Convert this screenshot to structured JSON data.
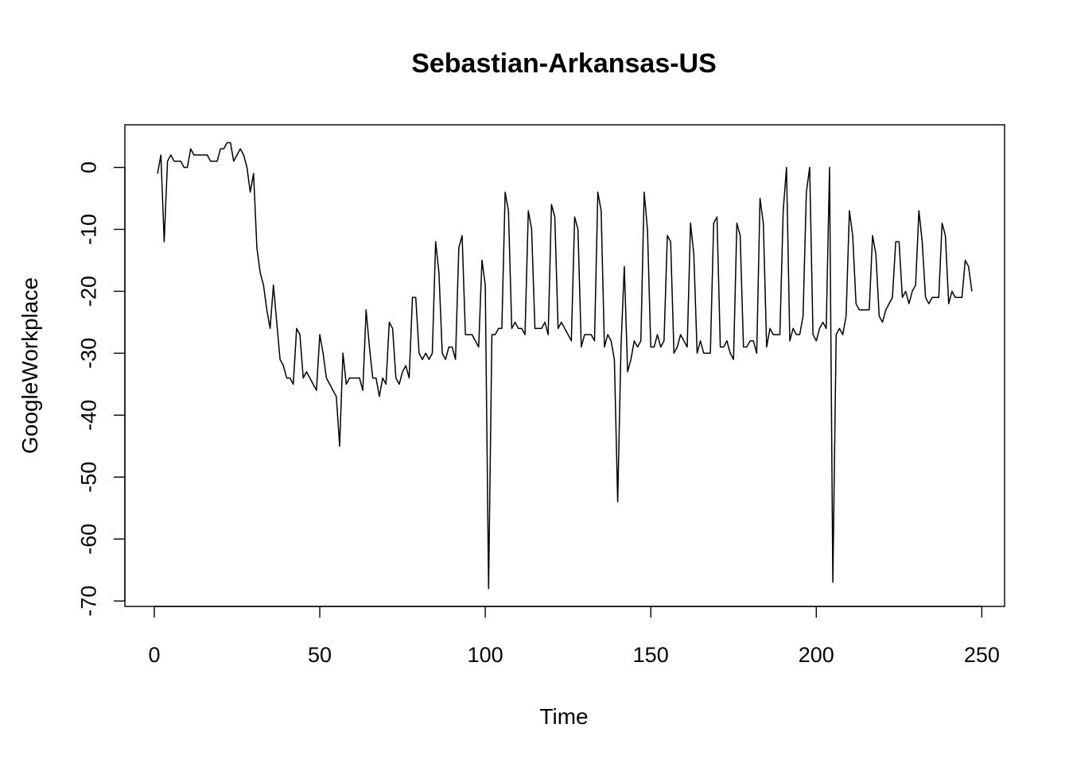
{
  "chart_data": {
    "type": "line",
    "title": "Sebastian-Arkansas-US",
    "xlabel": "Time",
    "ylabel": "GoogleWorkplace",
    "xlim": [
      -8.88,
      256.88
    ],
    "ylim": [
      -70.88,
      6.88
    ],
    "x_ticks": [
      0,
      50,
      100,
      150,
      200,
      250
    ],
    "y_ticks": [
      0,
      -10,
      -20,
      -30,
      -40,
      -50,
      -60,
      -70
    ],
    "x_tick_labels": [
      "0",
      "50",
      "100",
      "150",
      "200",
      "250"
    ],
    "y_tick_labels": [
      "0",
      "-10",
      "-20",
      "-30",
      "-40",
      "-50",
      "-60",
      "-70"
    ],
    "grid": false,
    "legend": "none",
    "series": [
      {
        "color": "#000000",
        "x_start": 1,
        "values": [
          -1,
          2,
          -12,
          1,
          2,
          1,
          1,
          1,
          0,
          0,
          3,
          2,
          2,
          2,
          2,
          2,
          1,
          1,
          1,
          3,
          3,
          4,
          4,
          1,
          2,
          3,
          2,
          0,
          -4,
          -1,
          -13,
          -17,
          -19,
          -23,
          -26,
          -19,
          -25,
          -31,
          -32,
          -34,
          -34,
          -35,
          -26,
          -27,
          -34,
          -33,
          -34,
          -35,
          -36,
          -27,
          -30,
          -34,
          -35,
          -36,
          -37,
          -45,
          -30,
          -35,
          -34,
          -34,
          -34,
          -34,
          -36,
          -23,
          -29,
          -34,
          -34,
          -37,
          -34,
          -35,
          -25,
          -26,
          -34,
          -35,
          -33,
          -32,
          -34,
          -21,
          -21,
          -30,
          -31,
          -30,
          -31,
          -30,
          -12,
          -17,
          -30,
          -31,
          -29,
          -29,
          -31,
          -13,
          -11,
          -27,
          -27,
          -27,
          -28,
          -29,
          -15,
          -19,
          -68,
          -27,
          -27,
          -26,
          -26,
          -4,
          -7,
          -26,
          -25,
          -26,
          -26,
          -27,
          -7,
          -10,
          -26,
          -26,
          -26,
          -25,
          -27,
          -6,
          -8,
          -26,
          -25,
          -26,
          -27,
          -28,
          -8,
          -10,
          -29,
          -27,
          -27,
          -27,
          -28,
          -4,
          -7,
          -29,
          -27,
          -28,
          -31,
          -54,
          -29,
          -16,
          -33,
          -31,
          -28,
          -29,
          -28,
          -4,
          -10,
          -29,
          -29,
          -27,
          -29,
          -28,
          -11,
          -12,
          -30,
          -29,
          -27,
          -28,
          -29,
          -9,
          -14,
          -30,
          -28,
          -30,
          -30,
          -30,
          -9,
          -8,
          -29,
          -29,
          -28,
          -30,
          -31,
          -9,
          -11,
          -29,
          -29,
          -28,
          -28,
          -30,
          -5,
          -9,
          -29,
          -26,
          -27,
          -27,
          -27,
          -7,
          0,
          -28,
          -26,
          -27,
          -27,
          -24,
          -4,
          0,
          -27,
          -28,
          -26,
          -25,
          -26,
          0,
          -67,
          -27,
          -26,
          -27,
          -24,
          -7,
          -11,
          -22,
          -23,
          -23,
          -23,
          -23,
          -11,
          -14,
          -24,
          -25,
          -23,
          -22,
          -21,
          -12,
          -12,
          -21,
          -20,
          -22,
          -20,
          -19,
          -7,
          -12,
          -21,
          -22,
          -21,
          -21,
          -21,
          -9,
          -11,
          -22,
          -20,
          -21,
          -21,
          -21,
          -15,
          -16,
          -20
        ]
      }
    ]
  }
}
